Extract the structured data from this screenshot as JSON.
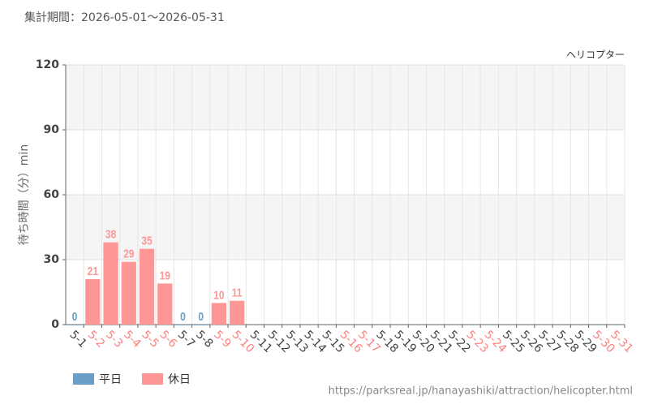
{
  "chart_data": {
    "type": "bar",
    "period": "集計期間：2026-05-01～2026-05-31",
    "series_title": "ヘリコプター",
    "y_label": "待ち時間（分）min",
    "source": "https://parksreal.jp/hanayashiki/attraction/helicopter.html",
    "categories": [
      "5-1",
      "5-2",
      "5-3",
      "5-4",
      "5-5",
      "5-6",
      "5-7",
      "5-8",
      "5-9",
      "5-10",
      "5-11",
      "5-12",
      "5-13",
      "5-14",
      "5-15",
      "5-16",
      "5-17",
      "5-18",
      "5-19",
      "5-20",
      "5-21",
      "5-22",
      "5-23",
      "5-24",
      "5-25",
      "5-26",
      "5-27",
      "5-28",
      "5-29",
      "5-30",
      "5-31"
    ],
    "category_colors": [
      "#444444",
      "#ff8080",
      "#ff8080",
      "#ff8080",
      "#ff8080",
      "#ff8080",
      "#444444",
      "#444444",
      "#ff8080",
      "#ff8080",
      "#444444",
      "#444444",
      "#444444",
      "#444444",
      "#444444",
      "#ff8080",
      "#ff8080",
      "#444444",
      "#444444",
      "#444444",
      "#444444",
      "#444444",
      "#ff8080",
      "#ff8080",
      "#444444",
      "#444444",
      "#444444",
      "#444444",
      "#444444",
      "#ff8080",
      "#ff8080"
    ],
    "series": [
      {
        "name": "平日",
        "color": "#6a9ec7",
        "values": [
          0,
          null,
          null,
          null,
          null,
          null,
          0,
          0,
          null,
          null,
          null,
          null,
          null,
          null,
          null,
          null,
          null,
          null,
          null,
          null,
          null,
          null,
          null,
          null,
          null,
          null,
          null,
          null,
          null,
          null,
          null
        ]
      },
      {
        "name": "休日",
        "color": "#ff9696",
        "values": [
          null,
          21,
          38,
          29,
          35,
          19,
          null,
          null,
          10,
          11,
          null,
          null,
          null,
          null,
          null,
          null,
          null,
          null,
          null,
          null,
          null,
          null,
          null,
          null,
          null,
          null,
          null,
          null,
          null,
          null,
          null
        ]
      }
    ],
    "ylim": [
      0,
      120
    ],
    "yticks": [
      0,
      30,
      60,
      90,
      120
    ],
    "grid": true
  }
}
